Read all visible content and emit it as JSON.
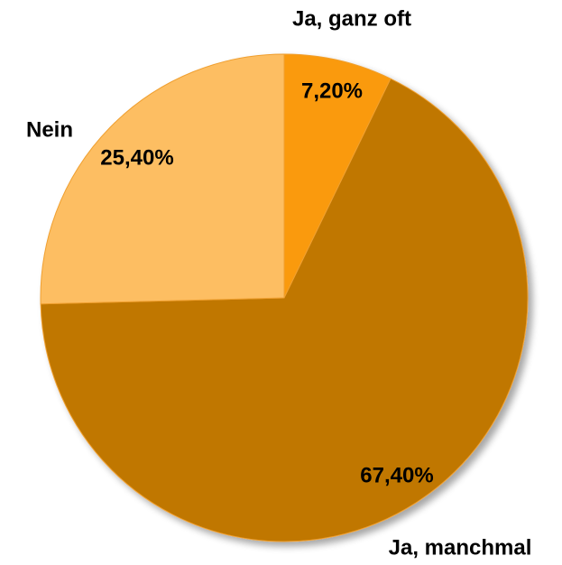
{
  "chart_data": {
    "type": "pie",
    "categories": [
      "Ja, ganz oft",
      "Ja, manchmal",
      "Nein"
    ],
    "values": [
      7.2,
      67.4,
      25.4
    ],
    "value_labels": [
      "7,20%",
      "67,40%",
      "25,40%"
    ],
    "colors": [
      "#fa9a0c",
      "#c07700",
      "#fdbe62"
    ]
  }
}
